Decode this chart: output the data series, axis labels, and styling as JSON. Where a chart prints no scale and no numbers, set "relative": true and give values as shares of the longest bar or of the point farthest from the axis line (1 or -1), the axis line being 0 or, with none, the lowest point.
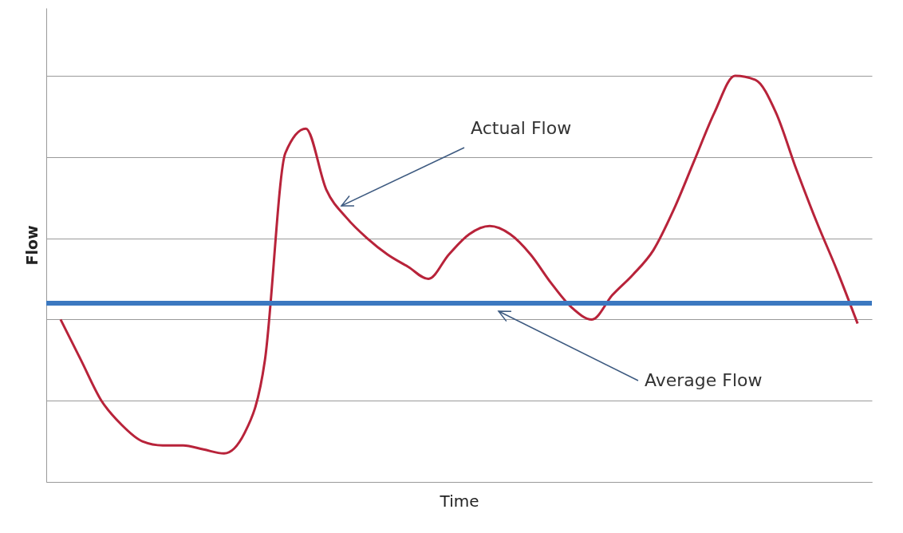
{
  "chart_data": {
    "type": "line",
    "relative": true,
    "xlabel": "Time",
    "ylabel": "Flow",
    "categories": [
      null,
      null,
      null,
      null,
      null,
      null,
      null,
      null,
      null,
      null,
      null,
      null,
      null,
      null,
      null,
      null,
      null,
      null,
      null,
      null,
      null,
      null,
      null,
      null,
      null,
      null,
      null,
      null,
      null,
      null,
      null,
      null,
      null,
      null,
      null,
      null,
      null,
      null,
      null,
      null
    ],
    "series": [
      {
        "color": "#b8233a",
        "values": [
          0.4,
          0.3,
          0.2,
          0.14,
          0.1,
          0.09,
          0.09,
          0.08,
          0.07,
          0.12,
          0.3,
          0.81,
          0.87,
          0.72,
          0.65,
          0.6,
          0.56,
          0.53,
          0.5,
          0.56,
          0.61,
          0.63,
          0.61,
          0.56,
          0.49,
          0.43,
          0.4,
          0.46,
          0.51,
          0.57,
          0.67,
          0.79,
          0.91,
          1.0,
          0.99,
          0.91,
          0.77,
          0.64,
          0.52,
          0.39
        ]
      }
    ],
    "ref_lines": [
      {
        "axis": "y",
        "value": 0.44,
        "label": "Average Flow",
        "color": "#3b78c0"
      }
    ],
    "annotations": [
      "Actual Flow"
    ],
    "grid": "y",
    "marker": "none",
    "line_style": "solid"
  }
}
